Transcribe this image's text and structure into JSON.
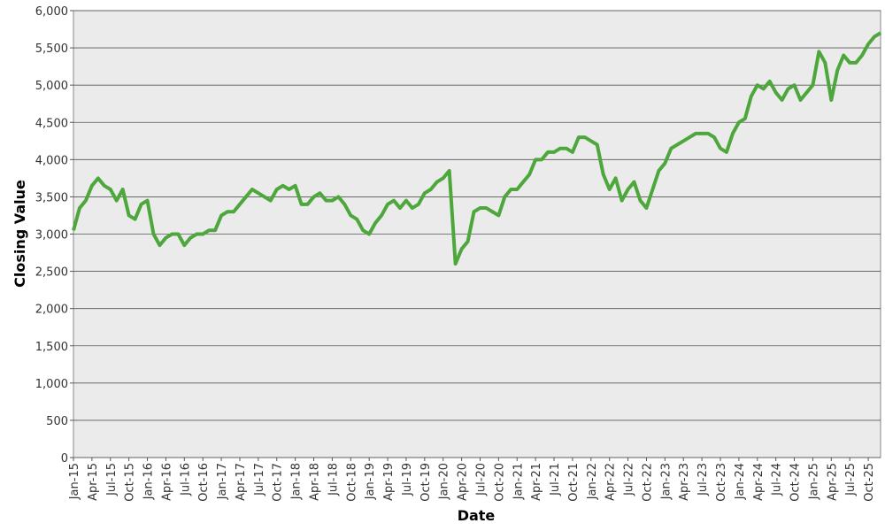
{
  "chart_data": {
    "type": "line",
    "x_label": "Date",
    "y_label": "Closing Value",
    "categories": [
      "Jan-15",
      null,
      null,
      "Apr-15",
      null,
      null,
      "Jul-15",
      null,
      null,
      "Oct-15",
      null,
      null,
      "Jan-16",
      null,
      null,
      "Apr-16",
      null,
      null,
      "Jul-16",
      null,
      null,
      "Oct-16",
      null,
      null,
      "Jan-17",
      null,
      null,
      "Apr-17",
      null,
      null,
      "Jul-17",
      null,
      null,
      "Oct-17",
      null,
      null,
      "Jan-18",
      null,
      null,
      "Apr-18",
      null,
      null,
      "Jul-18",
      null,
      null,
      "Oct-18",
      null,
      null,
      "Jan-19",
      null,
      null,
      "Apr-19",
      null,
      null,
      "Jul-19",
      null,
      null,
      "Oct-19",
      null,
      null,
      "Jan-20",
      null,
      null,
      "Apr-20",
      null,
      null,
      "Jul-20",
      null,
      null,
      "Oct-20",
      null,
      null,
      "Jan-21",
      null,
      null,
      "Apr-21",
      null,
      null,
      "Jul-21",
      null,
      null,
      "Oct-21",
      null,
      null,
      "Jan-22",
      null,
      null,
      "Apr-22",
      null,
      null,
      "Jul-22",
      null,
      null,
      "Oct-22",
      null,
      null,
      "Jan-23",
      null,
      null,
      "Apr-23",
      null,
      null,
      "Jul-23",
      null,
      null,
      "Oct-23",
      null,
      null,
      "Jan-24",
      null,
      null,
      "Apr-24",
      null,
      null,
      "Jul-24",
      null,
      null,
      "Oct-24",
      null,
      null,
      "Jan-25",
      null,
      null,
      "Apr-25",
      null,
      null,
      "Jul-25",
      null,
      null,
      "Oct-25",
      null,
      null
    ],
    "values": [
      3050,
      3350,
      3450,
      3650,
      3750,
      3650,
      3600,
      3450,
      3600,
      3250,
      3200,
      3400,
      3450,
      3000,
      2850,
      2950,
      3000,
      3000,
      2850,
      2950,
      3000,
      3000,
      3050,
      3050,
      3250,
      3300,
      3300,
      3400,
      3500,
      3600,
      3550,
      3500,
      3450,
      3600,
      3650,
      3600,
      3650,
      3400,
      3400,
      3500,
      3550,
      3450,
      3450,
      3500,
      3400,
      3250,
      3200,
      3050,
      3000,
      3150,
      3250,
      3400,
      3450,
      3350,
      3450,
      3350,
      3400,
      3550,
      3600,
      3700,
      3750,
      3850,
      2600,
      2800,
      2900,
      3300,
      3350,
      3350,
      3300,
      3250,
      3500,
      3600,
      3600,
      3700,
      3800,
      4000,
      4000,
      4100,
      4100,
      4150,
      4150,
      4100,
      4300,
      4300,
      4250,
      4200,
      3800,
      3600,
      3750,
      3450,
      3600,
      3700,
      3450,
      3350,
      3600,
      3850,
      3950,
      4150,
      4200,
      4250,
      4300,
      4350,
      4350,
      4350,
      4300,
      4150,
      4100,
      4350,
      4500,
      4550,
      4850,
      5000,
      4950,
      5050,
      4900,
      4800,
      4950,
      5000,
      4800,
      4900,
      5000,
      5450,
      5300,
      4800,
      5200,
      5400,
      5300,
      5300,
      5400,
      5550,
      5650,
      5700
    ],
    "color": "#4ea73c",
    "ylim": [
      0,
      6000
    ],
    "yticks": [
      0,
      500,
      {
        "value": 1000,
        "label": "1,000"
      },
      {
        "value": 1500,
        "label": "1,500"
      },
      {
        "value": 2000,
        "label": "2,000"
      },
      {
        "value": 2500,
        "label": "2,500"
      },
      {
        "value": 3000,
        "label": "3,000"
      },
      {
        "value": 3500,
        "label": "3,500"
      },
      {
        "value": 4000,
        "label": "4,000"
      },
      {
        "value": 4500,
        "label": "4,500"
      },
      {
        "value": 5000,
        "label": "5,000"
      },
      {
        "value": 5500,
        "label": "5,500"
      },
      {
        "value": 6000,
        "label": "6,000"
      }
    ],
    "grid": true
  }
}
